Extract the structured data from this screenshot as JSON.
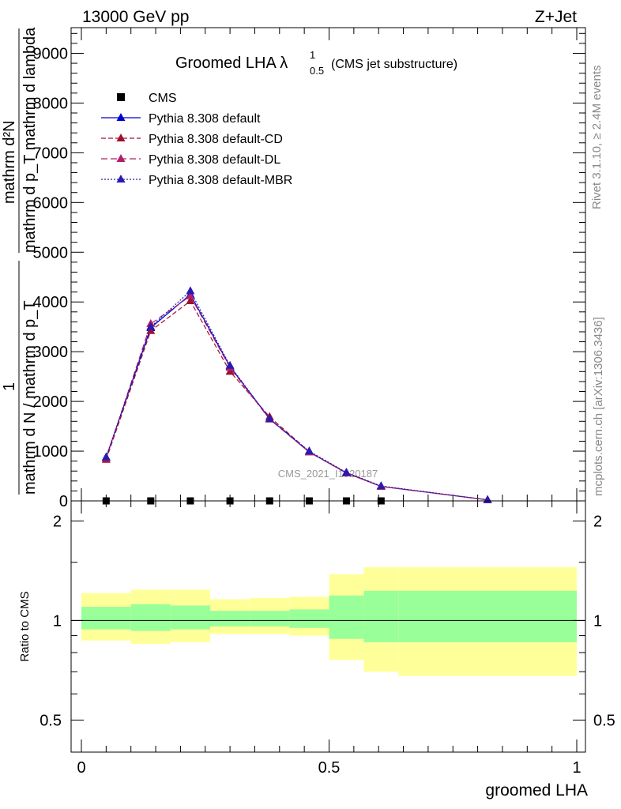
{
  "header": {
    "left": "13000 GeV pp",
    "right": "Z+Jet"
  },
  "side_labels": {
    "rivet": "Rivet 3.1.10, ≥ 2.4M events",
    "mcplots": "mcplots.cern.ch [arXiv:1306.3436]"
  },
  "chart_data": [
    {
      "type": "line",
      "title": "Groomed LHA",
      "title_lambda": "λ",
      "title_sup": "1",
      "title_sub": "0.5",
      "title_note": "(CMS jet substructure)",
      "ylabel_line1": "mathrm d²N",
      "ylabel_line1b": "mathrm d p_T mathrm d lambda",
      "ylabel_line2": "1",
      "ylabel_line2b": "mathrm d N / mathrm d p_T",
      "ylim": [
        0,
        9500
      ],
      "xlim": [
        0,
        1
      ],
      "yticks": [
        0,
        1000,
        2000,
        3000,
        4000,
        5000,
        6000,
        7000,
        8000,
        9000
      ],
      "ytick_labels": [
        "0",
        "1000",
        "2000",
        "3000",
        "4000",
        "5000",
        "6000",
        "7000",
        "8000",
        "9000"
      ],
      "watermark": "CMS_2021_I1920187",
      "legend_position": "top-left",
      "series": [
        {
          "name": "CMS",
          "color": "#000000",
          "marker": "square",
          "x": [
            0.05,
            0.14,
            0.22,
            0.3,
            0.38,
            0.46,
            0.535,
            0.605
          ],
          "y": [
            0,
            0,
            0,
            0,
            0,
            0,
            0,
            0
          ]
        },
        {
          "name": "Pythia 8.308 default",
          "color": "#0000cc",
          "dash": "",
          "x": [
            0.05,
            0.14,
            0.22,
            0.3,
            0.38,
            0.46,
            0.535,
            0.605,
            0.82
          ],
          "y": [
            870,
            3480,
            4150,
            2700,
            1650,
            980,
            560,
            290,
            20
          ]
        },
        {
          "name": "Pythia 8.308 default-CD",
          "color": "#a01030",
          "dash": "6,3",
          "x": [
            0.05,
            0.14,
            0.22,
            0.3,
            0.38,
            0.46,
            0.535,
            0.605,
            0.82
          ],
          "y": [
            830,
            3420,
            4020,
            2600,
            1690,
            990,
            560,
            290,
            20
          ]
        },
        {
          "name": "Pythia 8.308 default-DL",
          "color": "#b0206a",
          "dash": "8,4",
          "x": [
            0.05,
            0.14,
            0.22,
            0.3,
            0.38,
            0.46,
            0.535,
            0.605,
            0.82
          ],
          "y": [
            860,
            3560,
            4120,
            2680,
            1640,
            980,
            570,
            290,
            20
          ]
        },
        {
          "name": "Pythia 8.308 default-MBR",
          "color": "#2a1ab0",
          "dash": "2,2",
          "x": [
            0.05,
            0.14,
            0.22,
            0.3,
            0.38,
            0.46,
            0.535,
            0.605,
            0.82
          ],
          "y": [
            880,
            3500,
            4220,
            2720,
            1650,
            1000,
            570,
            300,
            20
          ]
        }
      ]
    },
    {
      "type": "area",
      "ylabel": "Ratio to CMS",
      "xlabel": "groomed LHA",
      "xlim": [
        0,
        1
      ],
      "ylim": [
        0.4,
        2.3
      ],
      "log_scale_y": true,
      "yticks": [
        0.5,
        1,
        2
      ],
      "ytick_labels": [
        "0.5",
        "1",
        "2"
      ],
      "xticks": [
        0,
        0.5,
        1
      ],
      "xtick_labels": [
        "0",
        "0.5",
        "1"
      ],
      "reference_line": 1,
      "bins": [
        {
          "x0": 0.0,
          "x1": 0.1,
          "inner": [
            0.94,
            1.1
          ],
          "outer": [
            0.87,
            1.21
          ]
        },
        {
          "x0": 0.1,
          "x1": 0.18,
          "inner": [
            0.93,
            1.12
          ],
          "outer": [
            0.85,
            1.24
          ]
        },
        {
          "x0": 0.18,
          "x1": 0.26,
          "inner": [
            0.94,
            1.11
          ],
          "outer": [
            0.86,
            1.24
          ]
        },
        {
          "x0": 0.26,
          "x1": 0.34,
          "inner": [
            0.96,
            1.07
          ],
          "outer": [
            0.91,
            1.16
          ]
        },
        {
          "x0": 0.34,
          "x1": 0.42,
          "inner": [
            0.96,
            1.07
          ],
          "outer": [
            0.91,
            1.17
          ]
        },
        {
          "x0": 0.42,
          "x1": 0.5,
          "inner": [
            0.95,
            1.08
          ],
          "outer": [
            0.9,
            1.18
          ]
        },
        {
          "x0": 0.5,
          "x1": 0.57,
          "inner": [
            0.88,
            1.19
          ],
          "outer": [
            0.76,
            1.38
          ]
        },
        {
          "x0": 0.57,
          "x1": 0.64,
          "inner": [
            0.86,
            1.23
          ],
          "outer": [
            0.7,
            1.45
          ]
        },
        {
          "x0": 0.64,
          "x1": 1.0,
          "inner": [
            0.86,
            1.23
          ],
          "outer": [
            0.68,
            1.45
          ]
        }
      ]
    }
  ]
}
